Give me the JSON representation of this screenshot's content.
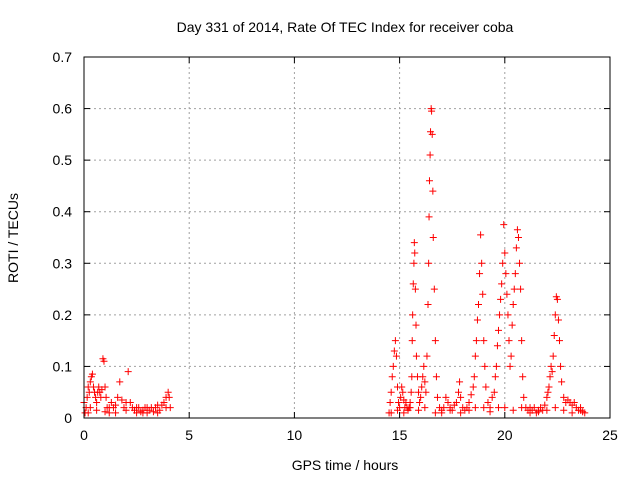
{
  "chart_data": {
    "type": "scatter",
    "title": "Day 331 of 2014, Rate Of TEC Index for receiver coba",
    "xlabel": "GPS time / hours",
    "ylabel": "ROTI / TECUs",
    "xlim": [
      0,
      25
    ],
    "ylim": [
      0,
      0.7
    ],
    "xticks": [
      0,
      5,
      10,
      15,
      20,
      25
    ],
    "yticks": [
      0,
      0.1,
      0.2,
      0.3,
      0.4,
      0.5,
      0.6,
      0.7
    ],
    "xtick_labels": [
      "0",
      "5",
      "10",
      "15",
      "20",
      "25"
    ],
    "ytick_labels": [
      "0",
      "0.1",
      "0.2",
      "0.3",
      "0.4",
      "0.5",
      "0.6",
      "0.7"
    ],
    "grid": true,
    "marker": "plus",
    "color": "#ff0000",
    "series": [
      {
        "name": "ROTI",
        "points": [
          [
            0.0,
            0.03
          ],
          [
            0.05,
            0.01
          ],
          [
            0.1,
            0.02
          ],
          [
            0.15,
            0.04
          ],
          [
            0.2,
            0.06
          ],
          [
            0.25,
            0.05
          ],
          [
            0.3,
            0.07
          ],
          [
            0.35,
            0.08
          ],
          [
            0.4,
            0.085
          ],
          [
            0.45,
            0.06
          ],
          [
            0.5,
            0.05
          ],
          [
            0.55,
            0.04
          ],
          [
            0.6,
            0.03
          ],
          [
            0.65,
            0.05
          ],
          [
            0.7,
            0.06
          ],
          [
            0.75,
            0.05
          ],
          [
            0.8,
            0.04
          ],
          [
            0.85,
            0.055
          ],
          [
            0.9,
            0.115
          ],
          [
            0.95,
            0.11
          ],
          [
            1.0,
            0.06
          ],
          [
            1.05,
            0.04
          ],
          [
            1.1,
            0.02
          ],
          [
            1.2,
            0.01
          ],
          [
            1.3,
            0.03
          ],
          [
            1.4,
            0.02
          ],
          [
            1.5,
            0.025
          ],
          [
            1.6,
            0.04
          ],
          [
            1.7,
            0.07
          ],
          [
            1.8,
            0.035
          ],
          [
            1.9,
            0.02
          ],
          [
            2.0,
            0.015
          ],
          [
            2.1,
            0.09
          ],
          [
            2.2,
            0.03
          ],
          [
            2.3,
            0.02
          ],
          [
            2.4,
            0.015
          ],
          [
            2.5,
            0.01
          ],
          [
            2.6,
            0.02
          ],
          [
            2.7,
            0.012
          ],
          [
            2.8,
            0.015
          ],
          [
            2.9,
            0.02
          ],
          [
            3.0,
            0.01
          ],
          [
            3.1,
            0.015
          ],
          [
            3.2,
            0.02
          ],
          [
            3.3,
            0.012
          ],
          [
            3.4,
            0.02
          ],
          [
            3.5,
            0.01
          ],
          [
            3.6,
            0.015
          ],
          [
            3.7,
            0.025
          ],
          [
            3.8,
            0.03
          ],
          [
            3.9,
            0.04
          ],
          [
            4.0,
            0.05
          ],
          [
            4.05,
            0.04
          ],
          [
            4.1,
            0.02
          ],
          [
            0.3,
            0.02
          ],
          [
            0.6,
            0.015
          ],
          [
            1.0,
            0.012
          ],
          [
            1.5,
            0.01
          ],
          [
            2.0,
            0.03
          ],
          [
            2.5,
            0.02
          ],
          [
            3.0,
            0.02
          ],
          [
            3.5,
            0.025
          ],
          [
            3.9,
            0.02
          ],
          [
            0.2,
            0.01
          ],
          [
            1.2,
            0.02
          ],
          [
            2.8,
            0.01
          ],
          [
            14.5,
            0.01
          ],
          [
            14.55,
            0.03
          ],
          [
            14.6,
            0.05
          ],
          [
            14.65,
            0.08
          ],
          [
            14.7,
            0.1
          ],
          [
            14.75,
            0.13
          ],
          [
            14.8,
            0.15
          ],
          [
            14.85,
            0.12
          ],
          [
            14.9,
            0.06
          ],
          [
            14.95,
            0.03
          ],
          [
            15.0,
            0.02
          ],
          [
            15.05,
            0.04
          ],
          [
            15.1,
            0.06
          ],
          [
            15.15,
            0.05
          ],
          [
            15.2,
            0.035
          ],
          [
            15.25,
            0.02
          ],
          [
            15.3,
            0.03
          ],
          [
            15.35,
            0.02
          ],
          [
            15.4,
            0.015
          ],
          [
            15.45,
            0.02
          ],
          [
            15.5,
            0.03
          ],
          [
            15.55,
            0.05
          ],
          [
            15.58,
            0.08
          ],
          [
            15.6,
            0.15
          ],
          [
            15.62,
            0.2
          ],
          [
            15.65,
            0.26
          ],
          [
            15.68,
            0.3
          ],
          [
            15.7,
            0.34
          ],
          [
            15.72,
            0.32
          ],
          [
            15.75,
            0.25
          ],
          [
            15.78,
            0.18
          ],
          [
            15.8,
            0.12
          ],
          [
            15.85,
            0.08
          ],
          [
            15.9,
            0.05
          ],
          [
            15.95,
            0.03
          ],
          [
            16.0,
            0.04
          ],
          [
            16.05,
            0.06
          ],
          [
            16.1,
            0.08
          ],
          [
            16.15,
            0.1
          ],
          [
            16.2,
            0.07
          ],
          [
            16.25,
            0.05
          ],
          [
            16.3,
            0.12
          ],
          [
            16.35,
            0.22
          ],
          [
            16.38,
            0.3
          ],
          [
            16.4,
            0.39
          ],
          [
            16.42,
            0.46
          ],
          [
            16.45,
            0.51
          ],
          [
            16.47,
            0.555
          ],
          [
            16.5,
            0.6
          ],
          [
            16.52,
            0.595
          ],
          [
            16.55,
            0.55
          ],
          [
            16.58,
            0.44
          ],
          [
            16.6,
            0.35
          ],
          [
            16.65,
            0.25
          ],
          [
            16.7,
            0.15
          ],
          [
            16.75,
            0.08
          ],
          [
            16.8,
            0.04
          ],
          [
            16.9,
            0.02
          ],
          [
            17.0,
            0.015
          ],
          [
            17.1,
            0.02
          ],
          [
            17.2,
            0.04
          ],
          [
            17.3,
            0.03
          ],
          [
            17.4,
            0.02
          ],
          [
            17.5,
            0.015
          ],
          [
            17.6,
            0.025
          ],
          [
            17.7,
            0.03
          ],
          [
            17.8,
            0.05
          ],
          [
            17.85,
            0.07
          ],
          [
            17.9,
            0.04
          ],
          [
            18.0,
            0.02
          ],
          [
            18.1,
            0.015
          ],
          [
            18.2,
            0.02
          ],
          [
            18.3,
            0.03
          ],
          [
            18.4,
            0.045
          ],
          [
            18.5,
            0.06
          ],
          [
            18.55,
            0.08
          ],
          [
            18.6,
            0.12
          ],
          [
            18.65,
            0.15
          ],
          [
            18.7,
            0.19
          ],
          [
            18.75,
            0.22
          ],
          [
            18.8,
            0.28
          ],
          [
            18.85,
            0.355
          ],
          [
            18.9,
            0.3
          ],
          [
            18.95,
            0.24
          ],
          [
            19.0,
            0.15
          ],
          [
            19.05,
            0.1
          ],
          [
            19.1,
            0.06
          ],
          [
            19.2,
            0.03
          ],
          [
            19.3,
            0.02
          ],
          [
            19.4,
            0.04
          ],
          [
            19.5,
            0.05
          ],
          [
            19.55,
            0.08
          ],
          [
            19.6,
            0.1
          ],
          [
            19.65,
            0.14
          ],
          [
            19.7,
            0.17
          ],
          [
            19.75,
            0.2
          ],
          [
            19.8,
            0.23
          ],
          [
            19.85,
            0.26
          ],
          [
            19.9,
            0.3
          ],
          [
            19.95,
            0.375
          ],
          [
            20.0,
            0.32
          ],
          [
            20.05,
            0.28
          ],
          [
            20.1,
            0.24
          ],
          [
            20.15,
            0.2
          ],
          [
            20.2,
            0.15
          ],
          [
            20.25,
            0.1
          ],
          [
            20.3,
            0.12
          ],
          [
            20.35,
            0.18
          ],
          [
            20.4,
            0.22
          ],
          [
            20.45,
            0.25
          ],
          [
            20.5,
            0.28
          ],
          [
            20.55,
            0.33
          ],
          [
            20.6,
            0.365
          ],
          [
            20.65,
            0.35
          ],
          [
            20.7,
            0.3
          ],
          [
            20.75,
            0.25
          ],
          [
            20.8,
            0.15
          ],
          [
            20.85,
            0.08
          ],
          [
            20.9,
            0.04
          ],
          [
            21.0,
            0.02
          ],
          [
            21.1,
            0.015
          ],
          [
            21.2,
            0.02
          ],
          [
            21.3,
            0.015
          ],
          [
            21.4,
            0.02
          ],
          [
            21.5,
            0.01
          ],
          [
            21.6,
            0.015
          ],
          [
            21.7,
            0.02
          ],
          [
            21.8,
            0.015
          ],
          [
            21.9,
            0.025
          ],
          [
            22.0,
            0.04
          ],
          [
            22.05,
            0.05
          ],
          [
            22.1,
            0.06
          ],
          [
            22.15,
            0.08
          ],
          [
            22.2,
            0.1
          ],
          [
            22.25,
            0.09
          ],
          [
            22.3,
            0.12
          ],
          [
            22.35,
            0.16
          ],
          [
            22.4,
            0.2
          ],
          [
            22.45,
            0.235
          ],
          [
            22.5,
            0.23
          ],
          [
            22.55,
            0.19
          ],
          [
            22.6,
            0.15
          ],
          [
            22.65,
            0.1
          ],
          [
            22.7,
            0.07
          ],
          [
            22.8,
            0.04
          ],
          [
            22.9,
            0.03
          ],
          [
            23.0,
            0.035
          ],
          [
            23.1,
            0.03
          ],
          [
            23.2,
            0.025
          ],
          [
            23.3,
            0.03
          ],
          [
            23.4,
            0.02
          ],
          [
            23.5,
            0.015
          ],
          [
            23.6,
            0.02
          ],
          [
            23.7,
            0.012
          ],
          [
            23.8,
            0.01
          ],
          [
            14.6,
            0.01
          ],
          [
            14.9,
            0.015
          ],
          [
            15.2,
            0.01
          ],
          [
            15.5,
            0.02
          ],
          [
            15.9,
            0.015
          ],
          [
            16.2,
            0.02
          ],
          [
            16.7,
            0.01
          ],
          [
            17.0,
            0.01
          ],
          [
            17.4,
            0.015
          ],
          [
            17.9,
            0.01
          ],
          [
            18.3,
            0.015
          ],
          [
            18.6,
            0.02
          ],
          [
            19.0,
            0.02
          ],
          [
            19.3,
            0.012
          ],
          [
            19.7,
            0.02
          ],
          [
            20.0,
            0.02
          ],
          [
            20.4,
            0.015
          ],
          [
            20.8,
            0.02
          ],
          [
            21.2,
            0.01
          ],
          [
            21.6,
            0.012
          ],
          [
            22.0,
            0.015
          ],
          [
            22.4,
            0.02
          ],
          [
            22.8,
            0.015
          ],
          [
            23.2,
            0.01
          ],
          [
            23.6,
            0.015
          ]
        ]
      }
    ]
  }
}
